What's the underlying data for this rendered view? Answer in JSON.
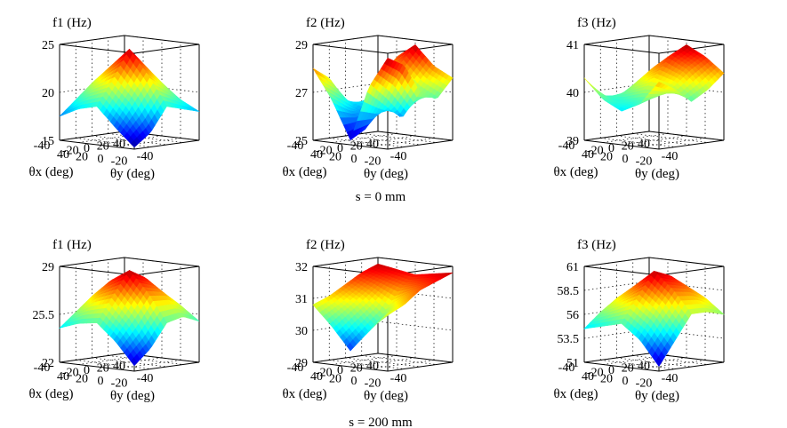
{
  "captions": [
    {
      "text": "s = 0 mm"
    },
    {
      "text": "s = 200 mm"
    }
  ],
  "colormap": [
    "#00008f",
    "#0000ff",
    "#0080ff",
    "#00ffff",
    "#80ff80",
    "#ffff00",
    "#ff8000",
    "#ff0000",
    "#800000"
  ],
  "chart_data": [
    {
      "type": "surface",
      "row": 0,
      "col": 0,
      "zlabel": "f1 (Hz)",
      "xlabel": "θx (deg)",
      "ylabel": "θy (deg)",
      "xticks": [
        "-20",
        "0",
        "20",
        "40"
      ],
      "yticks": [
        "40",
        "20",
        "0",
        "-20",
        "-40"
      ],
      "zticks": [
        "15",
        "20",
        "25"
      ],
      "zlim": [
        15,
        25
      ],
      "x_range": [
        -40,
        40
      ],
      "y_range": [
        -40,
        40
      ],
      "grid_x": [
        -40,
        -20,
        0,
        20,
        40
      ],
      "grid_y": [
        -40,
        -20,
        0,
        20,
        40
      ],
      "z": [
        [
          18.5,
          19.5,
          20.5,
          19.0,
          18.0
        ],
        [
          19.5,
          21.0,
          22.5,
          20.5,
          18.5
        ],
        [
          20.5,
          22.5,
          24.5,
          22.0,
          19.0
        ],
        [
          19.0,
          20.5,
          21.5,
          19.5,
          16.5
        ],
        [
          17.5,
          18.5,
          19.0,
          17.0,
          15.2
        ]
      ]
    },
    {
      "type": "surface",
      "row": 0,
      "col": 1,
      "zlabel": "f2 (Hz)",
      "xlabel": "θx (deg)",
      "ylabel": "θy (deg)",
      "xticks": [
        "-20",
        "0",
        "20",
        "40"
      ],
      "yticks": [
        "40",
        "20",
        "0",
        "-20",
        "-40"
      ],
      "zticks": [
        "25",
        "27",
        "29"
      ],
      "zlim": [
        25,
        29
      ],
      "x_range": [
        -40,
        40
      ],
      "y_range": [
        -40,
        40
      ],
      "grid_x": [
        -40,
        -20,
        0,
        20,
        40
      ],
      "grid_y": [
        -40,
        -20,
        0,
        20,
        40
      ],
      "z": [
        [
          27.0,
          28.2,
          28.8,
          28.0,
          27.6
        ],
        [
          26.2,
          27.0,
          28.0,
          27.2,
          26.8
        ],
        [
          26.5,
          26.0,
          26.8,
          26.0,
          27.2
        ],
        [
          27.5,
          26.3,
          25.6,
          26.8,
          28.4
        ],
        [
          28.0,
          26.8,
          25.2,
          27.5,
          28.8
        ]
      ]
    },
    {
      "type": "surface",
      "row": 0,
      "col": 2,
      "zlabel": "f3 (Hz)",
      "xlabel": "θx (deg)",
      "ylabel": "θy (deg)",
      "xticks": [
        "-20",
        "0",
        "20",
        "40"
      ],
      "yticks": [
        "40",
        "20",
        "0",
        "-20",
        "-40"
      ],
      "zticks": [
        "39",
        "40",
        "41"
      ],
      "zlim": [
        39,
        41
      ],
      "x_range": [
        -40,
        40
      ],
      "y_range": [
        -40,
        40
      ],
      "grid_x": [
        -40,
        -20,
        0,
        20,
        40
      ],
      "grid_y": [
        -40,
        -20,
        0,
        20,
        40
      ],
      "z": [
        [
          40.2,
          40.6,
          40.9,
          40.7,
          40.4
        ],
        [
          40.0,
          40.4,
          40.7,
          40.5,
          40.1
        ],
        [
          39.8,
          40.1,
          40.3,
          40.2,
          39.9
        ],
        [
          39.9,
          39.8,
          39.9,
          40.0,
          40.2
        ],
        [
          40.3,
          39.9,
          39.7,
          39.9,
          40.4
        ]
      ]
    },
    {
      "type": "surface",
      "row": 1,
      "col": 0,
      "zlabel": "f1 (Hz)",
      "xlabel": "θx (deg)",
      "ylabel": "θy (deg)",
      "xticks": [
        "-20",
        "0",
        "20",
        "40"
      ],
      "yticks": [
        "40",
        "20",
        "0",
        "-20",
        "-40"
      ],
      "zticks": [
        "22",
        "25.5",
        "29"
      ],
      "zlim": [
        22,
        29
      ],
      "x_range": [
        -40,
        40
      ],
      "y_range": [
        -40,
        40
      ],
      "grid_x": [
        -40,
        -20,
        0,
        20,
        40
      ],
      "grid_y": [
        -40,
        -20,
        0,
        20,
        40
      ],
      "z": [
        [
          25.0,
          26.0,
          26.8,
          26.0,
          25.0
        ],
        [
          26.0,
          27.2,
          28.0,
          27.0,
          25.5
        ],
        [
          26.5,
          27.8,
          28.7,
          27.2,
          25.2
        ],
        [
          25.5,
          26.5,
          27.0,
          25.5,
          23.5
        ],
        [
          24.5,
          25.0,
          25.2,
          24.0,
          22.4
        ]
      ]
    },
    {
      "type": "surface",
      "row": 1,
      "col": 1,
      "zlabel": "f2 (Hz)",
      "xlabel": "θx (deg)",
      "ylabel": "θy (deg)",
      "xticks": [
        "-20",
        "0",
        "20",
        "40"
      ],
      "yticks": [
        "40",
        "20",
        "0",
        "-20",
        "-40"
      ],
      "zticks": [
        "29",
        "30",
        "31",
        "32"
      ],
      "zlim": [
        29,
        32
      ],
      "x_range": [
        -40,
        40
      ],
      "y_range": [
        -40,
        40
      ],
      "grid_x": [
        -40,
        -20,
        0,
        20,
        40
      ],
      "grid_y": [
        -40,
        -20,
        0,
        20,
        40
      ],
      "z": [
        [
          31.8,
          31.7,
          31.6,
          31.7,
          31.8
        ],
        [
          31.6,
          31.4,
          31.2,
          31.4,
          31.6
        ],
        [
          31.3,
          31.0,
          30.5,
          31.0,
          31.4
        ],
        [
          31.0,
          30.6,
          30.0,
          30.6,
          31.0
        ],
        [
          30.8,
          30.2,
          29.5,
          30.2,
          30.8
        ]
      ]
    },
    {
      "type": "surface",
      "row": 1,
      "col": 2,
      "zlabel": "f3 (Hz)",
      "xlabel": "θx (deg)",
      "ylabel": "θy (deg)",
      "xticks": [
        "-20",
        "0",
        "20",
        "40"
      ],
      "yticks": [
        "40",
        "20",
        "0",
        "-20",
        "-40"
      ],
      "zticks": [
        "51",
        "53.5",
        "56",
        "58.5",
        "61"
      ],
      "zlim": [
        51,
        61
      ],
      "x_range": [
        -40,
        40
      ],
      "y_range": [
        -40,
        40
      ],
      "grid_x": [
        -40,
        -20,
        0,
        20,
        40
      ],
      "grid_y": [
        -40,
        -20,
        0,
        20,
        40
      ],
      "z": [
        [
          56.0,
          57.5,
          58.5,
          57.5,
          56.0
        ],
        [
          57.0,
          58.5,
          59.8,
          58.5,
          56.5
        ],
        [
          57.2,
          58.8,
          60.5,
          58.8,
          56.5
        ],
        [
          56.0,
          57.0,
          58.0,
          56.5,
          54.0
        ],
        [
          54.5,
          55.0,
          55.5,
          54.0,
          51.5
        ]
      ]
    }
  ]
}
